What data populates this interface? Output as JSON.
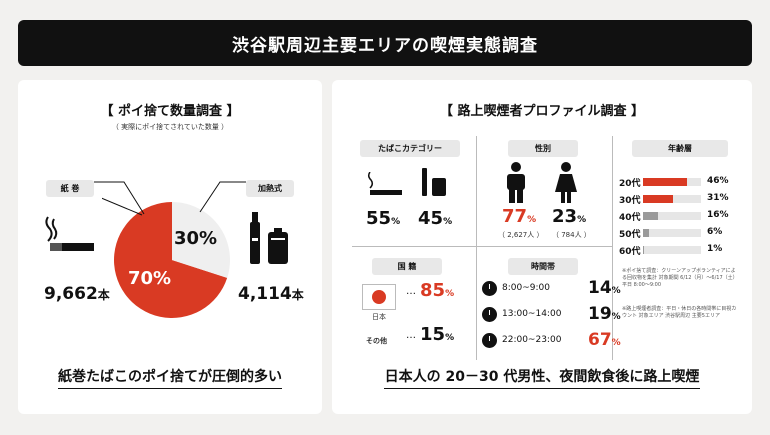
{
  "header": {
    "title": "渋谷駅周辺主要エリアの喫煙実態調査"
  },
  "left": {
    "title": "【 ポイ捨て数量調査 】",
    "subtitle": "（ 実際にポイ捨てされていた数量 ）",
    "label_paper": "紙 巻",
    "label_heated": "加熱式",
    "count_paper": "9,662",
    "count_heated": "4,114",
    "unit": "本",
    "pie_label_paper": "70%",
    "pie_label_heated": "30%",
    "conclusion": "紙巻たばこのポイ捨てが圧倒的多い"
  },
  "right": {
    "title": "【 路上喫煙者プロファイル調査 】",
    "cat_label": "たばこカテゴリー",
    "cat_paper": "55",
    "cat_heated": "45",
    "pct": "%",
    "gender_label": "性別",
    "male_pct": "77",
    "female_pct": "23",
    "male_n": "（ 2,627人 ）",
    "female_n": "（ 784人 ）",
    "age_label": "年齢層",
    "ages": [
      {
        "label": "20代",
        "value": "46%"
      },
      {
        "label": "30代",
        "value": "31%"
      },
      {
        "label": "40代",
        "value": "16%"
      },
      {
        "label": "50代",
        "value": "6%"
      },
      {
        "label": "60代",
        "value": "1%"
      }
    ],
    "nation_label": "国 籍",
    "japan_label": "日本",
    "japan_pct": "85",
    "other_label": "その他",
    "other_pct": "15",
    "ellipsis": "…",
    "time_label": "時間帯",
    "times": [
      {
        "label": "8:00~9:00",
        "value": "14"
      },
      {
        "label": "13:00~14:00",
        "value": "19"
      },
      {
        "label": "22:00~23:00",
        "value": "67"
      }
    ],
    "notes1": "※ポイ捨て調査：クリーンアップボランティアによる回収物を集計 対象期間 6/12（月）〜6/17（土） 平日 8:00〜9:00",
    "notes2": "※路上喫煙者調査：平日・休日の各時間帯に目視カウント 対象エリア 渋谷駅周辺 主要5エリア",
    "conclusion": "日本人の 20－30 代男性、夜間飲食後に路上喫煙"
  },
  "colors": {
    "red": "#d93a23",
    "grey": "#9a9a9a",
    "light": "#efefef"
  },
  "chart_data": [
    {
      "type": "pie",
      "title": "【 ポイ捨て数量調査 】",
      "labels": [
        "紙 巻",
        "加熱式"
      ],
      "values": [
        70,
        30
      ],
      "counts": [
        9662,
        4114
      ],
      "unit": "本"
    },
    {
      "type": "bar",
      "title": "年齢層",
      "categories": [
        "20代",
        "30代",
        "40代",
        "50代",
        "60代"
      ],
      "values": [
        46,
        31,
        16,
        6,
        1
      ]
    }
  ]
}
